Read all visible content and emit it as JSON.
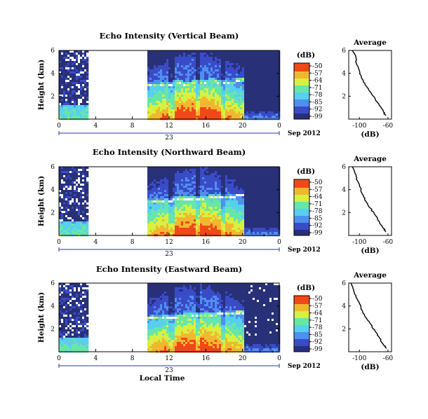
{
  "chart_data": [
    {
      "type": "heatmap",
      "title": "Echo Intensity (Vertical Beam)",
      "ylabel": "Height (km)",
      "yticks": [
        "2",
        "4",
        "6"
      ],
      "ylim": [
        0,
        6
      ],
      "xticks": [
        "0",
        "4",
        "8",
        "12",
        "16",
        "20",
        "0"
      ],
      "date_label": "23",
      "month_label": "Sep 2012",
      "colorbar_unit": "(dB)",
      "colorbar_ticks": [
        "-50",
        "-57",
        "-64",
        "-71",
        "-78",
        "-85",
        "-92",
        "-99"
      ],
      "gap_hours": [
        3,
        9.5
      ],
      "layer_height_km": [
        3.0,
        3.1,
        3.0,
        3.2,
        3.1,
        3.3,
        3.2,
        3.4,
        3.3,
        3.3,
        3.5
      ],
      "profile": {
        "title": "Average",
        "xlabel": "(dB)",
        "xticks": [
          "-100",
          "-60"
        ],
        "yticks": [
          "2",
          "4",
          "6"
        ],
        "height_km": [
          6.0,
          5.4,
          4.8,
          4.2,
          3.6,
          3.0,
          2.4,
          1.8,
          1.2,
          0.6,
          0.3
        ],
        "db": [
          -110,
          -105,
          -104,
          -100,
          -97,
          -92,
          -85,
          -78,
          -72,
          -66,
          -63
        ]
      }
    },
    {
      "type": "heatmap",
      "title": "Echo Intensity (Northward Beam)",
      "ylabel": "Height (km)",
      "yticks": [
        "2",
        "4",
        "6"
      ],
      "ylim": [
        0,
        6
      ],
      "xticks": [
        "0",
        "4",
        "8",
        "12",
        "16",
        "20",
        "0"
      ],
      "date_label": "23",
      "month_label": "Sep 2012",
      "colorbar_unit": "(dB)",
      "colorbar_ticks": [
        "-50",
        "-57",
        "-64",
        "-71",
        "-78",
        "-85",
        "-92",
        "-99"
      ],
      "gap_hours": [
        3,
        9.5
      ],
      "layer_height_km": [
        3.1,
        3.1,
        3.0,
        3.2,
        3.2,
        3.3,
        3.2,
        3.4,
        3.4,
        3.4,
        3.6
      ],
      "profile": {
        "title": "Average",
        "xlabel": "(dB)",
        "xticks": [
          "-100",
          "-60"
        ],
        "yticks": [
          "2",
          "4",
          "6"
        ],
        "height_km": [
          6.0,
          5.4,
          4.8,
          4.2,
          3.6,
          3.0,
          2.4,
          1.8,
          1.2,
          0.6,
          0.3
        ],
        "db": [
          -110,
          -106,
          -103,
          -99,
          -96,
          -91,
          -85,
          -78,
          -72,
          -66,
          -63
        ]
      }
    },
    {
      "type": "heatmap",
      "title": "Echo Intensity (Eastward Beam)",
      "ylabel": "Height (km)",
      "yticks": [
        "2",
        "4",
        "6"
      ],
      "ylim": [
        0,
        6
      ],
      "xticks": [
        "0",
        "4",
        "8",
        "12",
        "16",
        "20",
        "0"
      ],
      "date_label": "23",
      "month_label": "Sep 2012",
      "xlabel": "Local Time",
      "colorbar_unit": "(dB)",
      "colorbar_ticks": [
        "-50",
        "-57",
        "-64",
        "-71",
        "-78",
        "-85",
        "-92",
        "-99"
      ],
      "gap_hours": [
        3,
        9.5
      ],
      "layer_height_km": [
        3.1,
        3.0,
        3.1,
        3.1,
        3.2,
        3.3,
        3.3,
        3.3,
        3.4,
        3.4,
        3.5
      ],
      "profile": {
        "title": "Average",
        "xlabel": "(dB)",
        "xticks": [
          "-100",
          "-60"
        ],
        "yticks": [
          "2",
          "4",
          "6"
        ],
        "height_km": [
          6.0,
          5.4,
          4.8,
          4.2,
          3.6,
          3.0,
          2.4,
          1.8,
          1.2,
          0.6,
          0.3
        ],
        "db": [
          -112,
          -108,
          -105,
          -100,
          -96,
          -91,
          -84,
          -78,
          -72,
          -66,
          -62
        ]
      }
    }
  ],
  "palette": [
    "#283078",
    "#3a4bc8",
    "#4f8ff0",
    "#56d0ee",
    "#68e6a8",
    "#d8f040",
    "#f0b830",
    "#f04818"
  ],
  "white_gap_color": "#ffffff"
}
